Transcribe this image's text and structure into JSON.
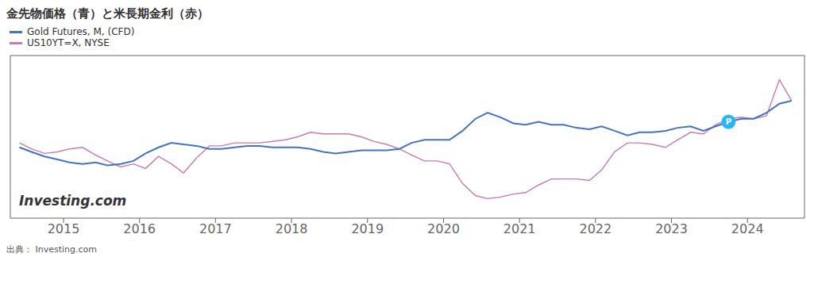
{
  "chart_data": {
    "type": "line",
    "title": "金先物価格（青）と米長期金利（赤）",
    "x": [
      2014.42,
      2014.58,
      2014.75,
      2014.92,
      2015.08,
      2015.25,
      2015.42,
      2015.58,
      2015.75,
      2015.92,
      2016.08,
      2016.25,
      2016.42,
      2016.58,
      2016.75,
      2016.92,
      2017.08,
      2017.25,
      2017.42,
      2017.58,
      2017.75,
      2017.92,
      2018.08,
      2018.25,
      2018.42,
      2018.58,
      2018.75,
      2018.92,
      2019.08,
      2019.25,
      2019.42,
      2019.58,
      2019.75,
      2019.92,
      2020.08,
      2020.25,
      2020.42,
      2020.58,
      2020.75,
      2020.92,
      2021.08,
      2021.25,
      2021.42,
      2021.58,
      2021.75,
      2021.92,
      2022.08,
      2022.25,
      2022.42,
      2022.58,
      2022.75,
      2022.92,
      2023.08,
      2023.25,
      2023.42,
      2023.58,
      2023.75,
      2023.92,
      2024.08,
      2024.25,
      2024.42,
      2024.58
    ],
    "series": [
      {
        "name": "Gold Futures, M, (CFD)",
        "color": "#4472c4",
        "values": [
          0.47,
          0.44,
          0.41,
          0.39,
          0.37,
          0.36,
          0.37,
          0.35,
          0.36,
          0.38,
          0.43,
          0.47,
          0.5,
          0.49,
          0.48,
          0.46,
          0.46,
          0.47,
          0.48,
          0.48,
          0.47,
          0.47,
          0.47,
          0.46,
          0.44,
          0.43,
          0.44,
          0.45,
          0.45,
          0.45,
          0.46,
          0.5,
          0.52,
          0.52,
          0.52,
          0.58,
          0.66,
          0.7,
          0.67,
          0.63,
          0.62,
          0.64,
          0.62,
          0.62,
          0.6,
          0.59,
          0.61,
          0.58,
          0.55,
          0.57,
          0.57,
          0.58,
          0.6,
          0.61,
          0.58,
          0.61,
          0.64,
          0.66,
          0.66,
          0.7,
          0.76,
          0.78
        ]
      },
      {
        "name": "US10YT=X, NYSE",
        "color": "#c87ab0",
        "values": [
          0.5,
          0.46,
          0.43,
          0.44,
          0.46,
          0.47,
          0.42,
          0.38,
          0.34,
          0.36,
          0.33,
          0.41,
          0.36,
          0.3,
          0.4,
          0.48,
          0.48,
          0.5,
          0.5,
          0.5,
          0.51,
          0.52,
          0.54,
          0.57,
          0.56,
          0.56,
          0.56,
          0.54,
          0.51,
          0.49,
          0.46,
          0.42,
          0.38,
          0.38,
          0.36,
          0.23,
          0.15,
          0.13,
          0.14,
          0.16,
          0.17,
          0.22,
          0.26,
          0.26,
          0.26,
          0.25,
          0.32,
          0.44,
          0.5,
          0.5,
          0.49,
          0.47,
          0.52,
          0.57,
          0.56,
          0.62,
          0.66,
          0.67,
          0.66,
          0.68,
          0.92,
          0.78
        ]
      }
    ],
    "xlim": [
      2014.3,
      2024.75
    ],
    "xticks": [
      2015,
      2016,
      2017,
      2018,
      2019,
      2020,
      2021,
      2022,
      2023,
      2024
    ],
    "ylim": [
      0.0,
      1.08
    ],
    "tick_labels": "x",
    "grid": false,
    "legend": "upper left",
    "annotations": [
      {
        "text": "P",
        "x": 2023.75,
        "y": 0.64,
        "color": "#29b6f6"
      },
      {
        "text": "Investing.com"
      },
      {
        "text": "出典： Investing.com"
      }
    ]
  }
}
